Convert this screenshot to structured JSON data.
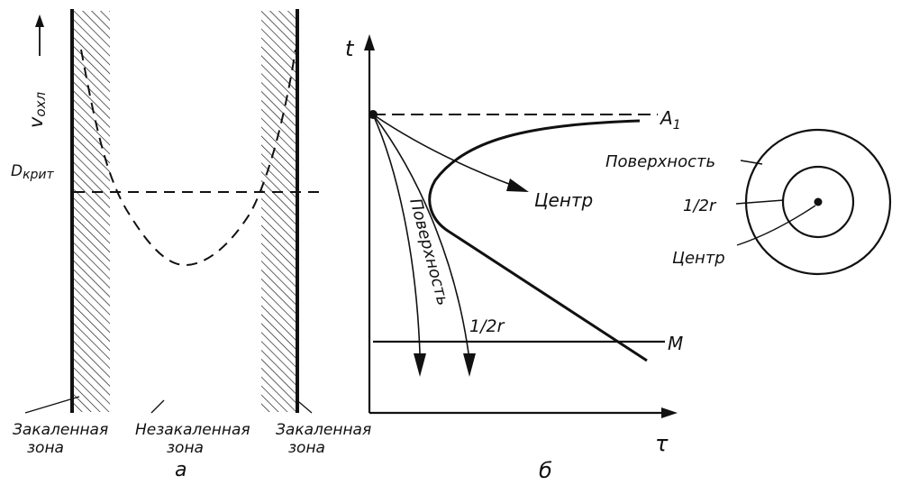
{
  "panel_a": {
    "y_axis_label": "v",
    "y_axis_subscript": "охл",
    "critical_label": "D",
    "critical_subscript": "крит",
    "zone_left": [
      "Закаленная",
      "зона"
    ],
    "zone_middle": [
      "Незакаленная",
      "зона"
    ],
    "zone_right": [
      "Закаленная",
      "зона"
    ],
    "panel_letter": "a"
  },
  "panel_b": {
    "y_axis_label": "t",
    "x_axis_label": "τ",
    "a1_label": "A",
    "a1_subscript": "1",
    "m_label": "M",
    "curve_center": "Центр",
    "curve_surface": "Поверхность",
    "curve_half_r": "1/2r",
    "panel_letter": "б"
  },
  "cross_section": {
    "surface": "Поверхность",
    "half_r": "1/2r",
    "center": "Центр"
  },
  "colors": {
    "ink": "#111111",
    "background": "#ffffff"
  }
}
